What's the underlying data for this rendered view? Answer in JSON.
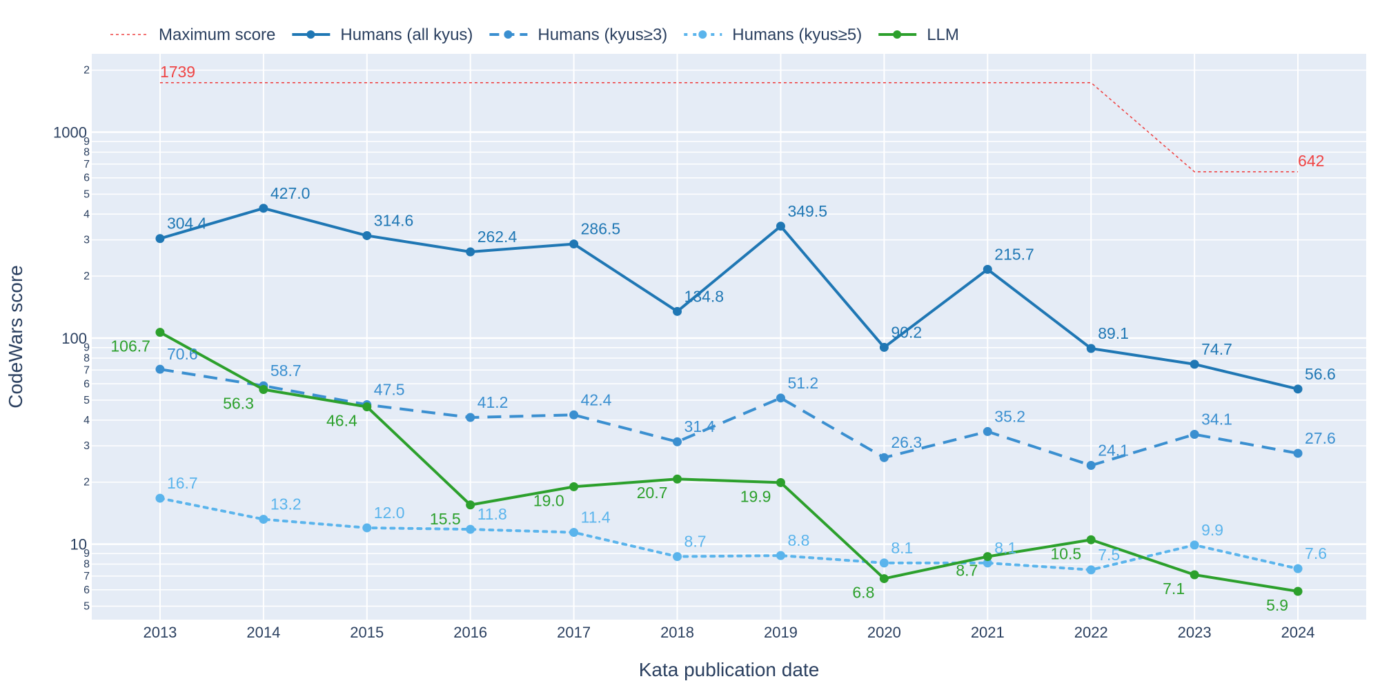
{
  "chart_data": {
    "type": "line",
    "x": [
      2013,
      2014,
      2015,
      2016,
      2017,
      2018,
      2019,
      2020,
      2021,
      2022,
      2023,
      2024
    ],
    "xlabel": "Kata publication date",
    "ylabel": "CodeWars score",
    "yscale": "log",
    "ylim": [
      4.3,
      2400
    ],
    "grid": true,
    "legend_position": "top-left",
    "y_major_ticks": [
      {
        "value": 10,
        "label": "10"
      },
      {
        "value": 100,
        "label": "100"
      },
      {
        "value": 1000,
        "label": "1000"
      }
    ],
    "y_minor_ticks": [
      {
        "value": 5,
        "label": "5"
      },
      {
        "value": 6,
        "label": "6"
      },
      {
        "value": 7,
        "label": "7"
      },
      {
        "value": 8,
        "label": "8"
      },
      {
        "value": 9,
        "label": "9"
      },
      {
        "value": 20,
        "label": "2"
      },
      {
        "value": 30,
        "label": "3"
      },
      {
        "value": 40,
        "label": "4"
      },
      {
        "value": 50,
        "label": "5"
      },
      {
        "value": 60,
        "label": "6"
      },
      {
        "value": 70,
        "label": "7"
      },
      {
        "value": 80,
        "label": "8"
      },
      {
        "value": 90,
        "label": "9"
      },
      {
        "value": 200,
        "label": "2"
      },
      {
        "value": 300,
        "label": "3"
      },
      {
        "value": 400,
        "label": "4"
      },
      {
        "value": 500,
        "label": "5"
      },
      {
        "value": 600,
        "label": "6"
      },
      {
        "value": 700,
        "label": "7"
      },
      {
        "value": 800,
        "label": "8"
      },
      {
        "value": 900,
        "label": "9"
      },
      {
        "value": 2000,
        "label": "2"
      }
    ],
    "series": [
      {
        "name": "Maximum score",
        "color": "#ef4444",
        "style": "dotted-thin",
        "markers": false,
        "values": [
          1739,
          1739,
          1739,
          1739,
          1739,
          1739,
          1739,
          1739,
          1739,
          1739,
          642,
          642
        ],
        "annotations": [
          {
            "index": 0,
            "text": "1739"
          },
          {
            "index": 11,
            "text": "642"
          }
        ]
      },
      {
        "name": "Humans (all kyus)",
        "color": "#1f77b4",
        "style": "solid",
        "markers": true,
        "values": [
          304.4,
          427.0,
          314.6,
          262.4,
          286.5,
          134.8,
          349.5,
          90.2,
          215.7,
          89.1,
          74.7,
          56.6
        ],
        "labels": [
          "304.4",
          "427.0",
          "314.6",
          "262.4",
          "286.5",
          "134.8",
          "349.5",
          "90.2",
          "215.7",
          "89.1",
          "74.7",
          "56.6"
        ]
      },
      {
        "name": "Humans (kyus≥3)",
        "color": "#3a8fd0",
        "style": "dash",
        "markers": true,
        "values": [
          70.6,
          58.7,
          47.5,
          41.2,
          42.4,
          31.4,
          51.2,
          26.3,
          35.2,
          24.1,
          34.1,
          27.6
        ],
        "labels": [
          "70.6",
          "58.7",
          "47.5",
          "41.2",
          "42.4",
          "31.4",
          "51.2",
          "26.3",
          "35.2",
          "24.1",
          "34.1",
          "27.6"
        ]
      },
      {
        "name": "Humans (kyus≥5)",
        "color": "#5ab4ec",
        "style": "dot",
        "markers": true,
        "values": [
          16.7,
          13.2,
          12.0,
          11.8,
          11.4,
          8.7,
          8.8,
          8.1,
          8.1,
          7.5,
          9.9,
          7.6
        ],
        "labels": [
          "16.7",
          "13.2",
          "12.0",
          "11.8",
          "11.4",
          "8.7",
          "8.8",
          "8.1",
          "8.1",
          "7.5",
          "9.9",
          "7.6"
        ]
      },
      {
        "name": "LLM",
        "color": "#2ca02c",
        "style": "solid",
        "markers": true,
        "values": [
          106.7,
          56.3,
          46.4,
          15.5,
          19.0,
          20.7,
          19.9,
          6.8,
          8.7,
          10.5,
          7.1,
          5.9
        ],
        "labels": [
          "106.7",
          "56.3",
          "46.4",
          "15.5",
          "19.0",
          "20.7",
          "19.9",
          "6.8",
          "8.7",
          "10.5",
          "7.1",
          "5.9"
        ]
      }
    ]
  }
}
